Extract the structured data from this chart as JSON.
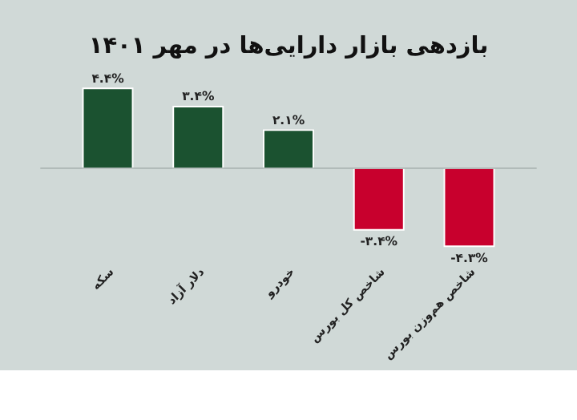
{
  "chart_data": {
    "type": "bar",
    "title": "بازدهی بازار دارایی‌ها در مهر ۱۴۰۱",
    "categories": [
      "سکه",
      "دلار آزاد",
      "خودرو",
      "شاخص کل بورس",
      "شاخص هم‌وزن بورس"
    ],
    "values": [
      4.4,
      3.4,
      2.1,
      -3.4,
      -4.3
    ],
    "colors": [
      "#1b5230",
      "#1b5230",
      "#1b5230",
      "#c8002d",
      "#c8002d"
    ],
    "value_labels": [
      "۴.۴%",
      "۳.۴%",
      "۲.۱%",
      "-۳.۴%",
      "-۴.۳%"
    ],
    "grid": false
  }
}
